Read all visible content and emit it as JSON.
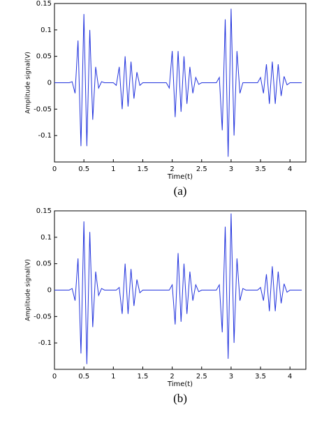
{
  "chart_data": [
    {
      "type": "line",
      "caption": "(a)",
      "xlabel": "Time(t)",
      "ylabel": "Amplitude signal(V)",
      "xlim": [
        0,
        4.27
      ],
      "ylim": [
        -0.15,
        0.15
      ],
      "xticks": [
        0,
        0.5,
        1,
        1.5,
        2,
        2.5,
        3,
        3.5,
        4
      ],
      "yticks": [
        -0.1,
        -0.05,
        0,
        0.05,
        0.1,
        0.15
      ],
      "series": [
        {
          "color": "#2233dd",
          "x": [
            0,
            0.05,
            0.1,
            0.15,
            0.2,
            0.25,
            0.3,
            0.35,
            0.4,
            0.45,
            0.5,
            0.55,
            0.6,
            0.65,
            0.7,
            0.75,
            0.8,
            0.85,
            0.9,
            0.95,
            1,
            1.05,
            1.1,
            1.15,
            1.2,
            1.25,
            1.3,
            1.35,
            1.4,
            1.45,
            1.5,
            1.55,
            1.6,
            1.65,
            1.7,
            1.75,
            1.8,
            1.85,
            1.9,
            1.95,
            2,
            2.05,
            2.1,
            2.15,
            2.2,
            2.25,
            2.3,
            2.35,
            2.4,
            2.45,
            2.5,
            2.55,
            2.6,
            2.65,
            2.7,
            2.75,
            2.8,
            2.85,
            2.9,
            2.95,
            3,
            3.05,
            3.1,
            3.15,
            3.2,
            3.25,
            3.3,
            3.35,
            3.4,
            3.45,
            3.5,
            3.55,
            3.6,
            3.65,
            3.7,
            3.75,
            3.8,
            3.85,
            3.9,
            3.95,
            4,
            4.05,
            4.1,
            4.15,
            4.2
          ],
          "values": [
            0,
            0,
            0,
            0,
            0,
            0,
            0.002,
            -0.02,
            0.08,
            -0.12,
            0.13,
            -0.12,
            0.1,
            -0.07,
            0.03,
            -0.01,
            0.002,
            0,
            0,
            0,
            0,
            -0.005,
            0.03,
            -0.05,
            0.05,
            -0.045,
            0.04,
            -0.03,
            0.02,
            -0.005,
            0,
            0,
            0,
            0,
            0,
            0,
            0,
            0,
            0,
            -0.01,
            0.06,
            -0.065,
            0.06,
            -0.055,
            0.05,
            -0.04,
            0.03,
            -0.02,
            0.01,
            -0.003,
            0,
            0,
            0,
            0,
            0,
            0,
            0.01,
            -0.09,
            0.12,
            -0.14,
            0.14,
            -0.1,
            0.06,
            -0.02,
            0,
            0,
            0,
            0,
            0,
            0,
            0.01,
            -0.02,
            0.035,
            -0.04,
            0.04,
            -0.04,
            0.035,
            -0.025,
            0.012,
            -0.004,
            0,
            0,
            0,
            0,
            0
          ]
        }
      ]
    },
    {
      "type": "line",
      "caption": "(b)",
      "xlabel": "Time(t)",
      "ylabel": "Amplitude signal(V)",
      "xlim": [
        0,
        4.27
      ],
      "ylim": [
        -0.15,
        0.15
      ],
      "xticks": [
        0,
        0.5,
        1,
        1.5,
        2,
        2.5,
        3,
        3.5,
        4
      ],
      "yticks": [
        -0.1,
        -0.05,
        0,
        0.05,
        0.1,
        0.15
      ],
      "series": [
        {
          "color": "#2233dd",
          "x": [
            0,
            0.05,
            0.1,
            0.15,
            0.2,
            0.25,
            0.3,
            0.35,
            0.4,
            0.45,
            0.5,
            0.55,
            0.6,
            0.65,
            0.7,
            0.75,
            0.8,
            0.85,
            0.9,
            0.95,
            1,
            1.05,
            1.1,
            1.15,
            1.2,
            1.25,
            1.3,
            1.35,
            1.4,
            1.45,
            1.5,
            1.55,
            1.6,
            1.65,
            1.7,
            1.75,
            1.8,
            1.85,
            1.9,
            1.95,
            2,
            2.05,
            2.1,
            2.15,
            2.2,
            2.25,
            2.3,
            2.35,
            2.4,
            2.45,
            2.5,
            2.55,
            2.6,
            2.65,
            2.7,
            2.75,
            2.8,
            2.85,
            2.9,
            2.95,
            3,
            3.05,
            3.1,
            3.15,
            3.2,
            3.25,
            3.3,
            3.35,
            3.4,
            3.45,
            3.5,
            3.55,
            3.6,
            3.65,
            3.7,
            3.75,
            3.8,
            3.85,
            3.9,
            3.95,
            4,
            4.05,
            4.1,
            4.15,
            4.2
          ],
          "values": [
            0,
            0,
            0,
            0,
            0,
            0,
            0.003,
            -0.02,
            0.06,
            -0.12,
            0.13,
            -0.14,
            0.11,
            -0.07,
            0.035,
            -0.01,
            0.003,
            0,
            0,
            0,
            0,
            0,
            0.005,
            -0.045,
            0.05,
            -0.045,
            0.04,
            -0.03,
            0.02,
            -0.005,
            0,
            0,
            0,
            0,
            0,
            0,
            0,
            0,
            0,
            0,
            0.01,
            -0.065,
            0.07,
            -0.06,
            0.05,
            -0.045,
            0.035,
            -0.02,
            0.01,
            -0.003,
            0,
            0,
            0,
            0,
            0,
            0,
            0.01,
            -0.08,
            0.12,
            -0.13,
            0.145,
            -0.1,
            0.06,
            -0.02,
            0.003,
            0,
            0,
            0,
            0,
            0,
            0.005,
            -0.02,
            0.03,
            -0.04,
            0.045,
            -0.04,
            0.035,
            -0.025,
            0.012,
            -0.004,
            0,
            0,
            0,
            0,
            0
          ]
        }
      ]
    }
  ]
}
